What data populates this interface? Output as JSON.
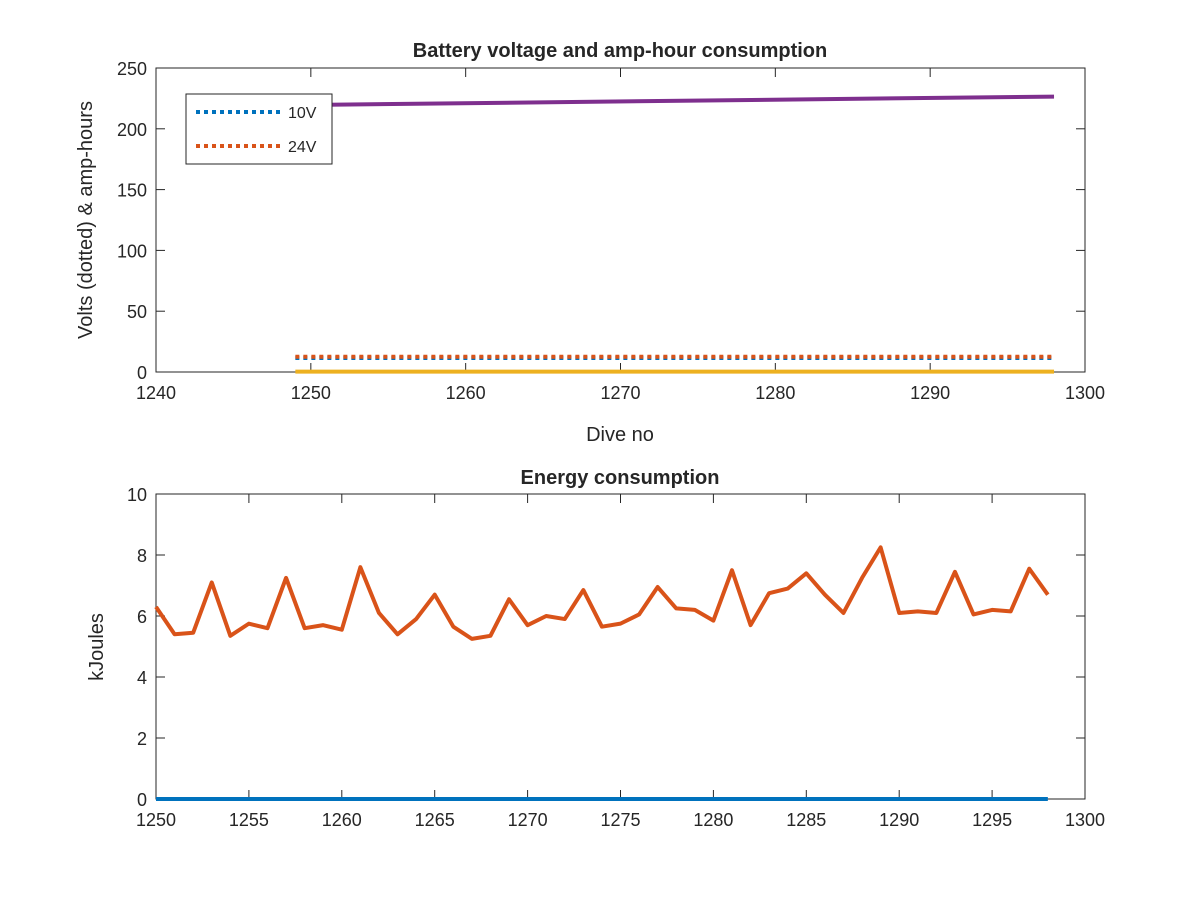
{
  "chart_data": [
    {
      "type": "line",
      "title": "Battery voltage and amp-hour consumption",
      "xlabel": "Dive no",
      "ylabel": "Volts (dotted) & amp-hours",
      "xlim": [
        1240,
        1300
      ],
      "ylim": [
        0,
        250
      ],
      "xticks": [
        1240,
        1250,
        1260,
        1270,
        1280,
        1290,
        1300
      ],
      "yticks": [
        0,
        50,
        100,
        150,
        200,
        250
      ],
      "legend_position": "top-left",
      "series": [
        {
          "name": "10V",
          "style": "dotted",
          "color": "#0072BD",
          "x": [
            1249,
            1298
          ],
          "y": [
            11.5,
            11.5
          ]
        },
        {
          "name": "24V",
          "style": "dotted",
          "color": "#D95319",
          "x": [
            1249,
            1298
          ],
          "y": [
            12.5,
            12.5
          ]
        },
        {
          "name": "",
          "style": "solid",
          "color": "#7E2F8E",
          "x": [
            1249,
            1298
          ],
          "y": [
            219.5,
            226.5
          ]
        },
        {
          "name": "",
          "style": "solid",
          "color": "#EDB120",
          "x": [
            1249,
            1298
          ],
          "y": [
            0.3,
            0.3
          ]
        }
      ]
    },
    {
      "type": "line",
      "title": "Energy consumption",
      "xlabel": "",
      "ylabel": "kJoules",
      "xlim": [
        1250,
        1300
      ],
      "ylim": [
        0,
        10
      ],
      "xticks": [
        1250,
        1255,
        1260,
        1265,
        1270,
        1275,
        1280,
        1285,
        1290,
        1295,
        1300
      ],
      "yticks": [
        0,
        2,
        4,
        6,
        8,
        10
      ],
      "series": [
        {
          "name": "",
          "style": "solid",
          "color": "#D95319",
          "x": [
            1250,
            1251,
            1252,
            1253,
            1254,
            1255,
            1256,
            1257,
            1258,
            1259,
            1260,
            1261,
            1262,
            1263,
            1264,
            1265,
            1266,
            1267,
            1268,
            1269,
            1270,
            1271,
            1272,
            1273,
            1274,
            1275,
            1276,
            1277,
            1278,
            1279,
            1280,
            1281,
            1282,
            1283,
            1284,
            1285,
            1286,
            1287,
            1288,
            1289,
            1290,
            1291,
            1292,
            1293,
            1294,
            1295,
            1296,
            1297,
            1298
          ],
          "y": [
            6.3,
            5.4,
            5.45,
            7.1,
            5.35,
            5.75,
            5.6,
            7.25,
            5.6,
            5.7,
            5.55,
            7.6,
            6.1,
            5.4,
            5.9,
            6.7,
            5.65,
            5.25,
            5.35,
            6.55,
            5.7,
            6.0,
            5.9,
            6.85,
            5.65,
            5.75,
            6.05,
            6.95,
            6.25,
            6.2,
            5.85,
            7.5,
            5.7,
            6.75,
            6.9,
            7.4,
            6.7,
            6.1,
            7.25,
            8.25,
            6.1,
            6.15,
            6.1,
            7.45,
            6.05,
            6.2,
            6.15,
            7.55,
            6.7
          ]
        },
        {
          "name": "",
          "style": "solid",
          "color": "#0072BD",
          "x": [
            1250,
            1298
          ],
          "y": [
            0,
            0
          ]
        }
      ]
    }
  ]
}
